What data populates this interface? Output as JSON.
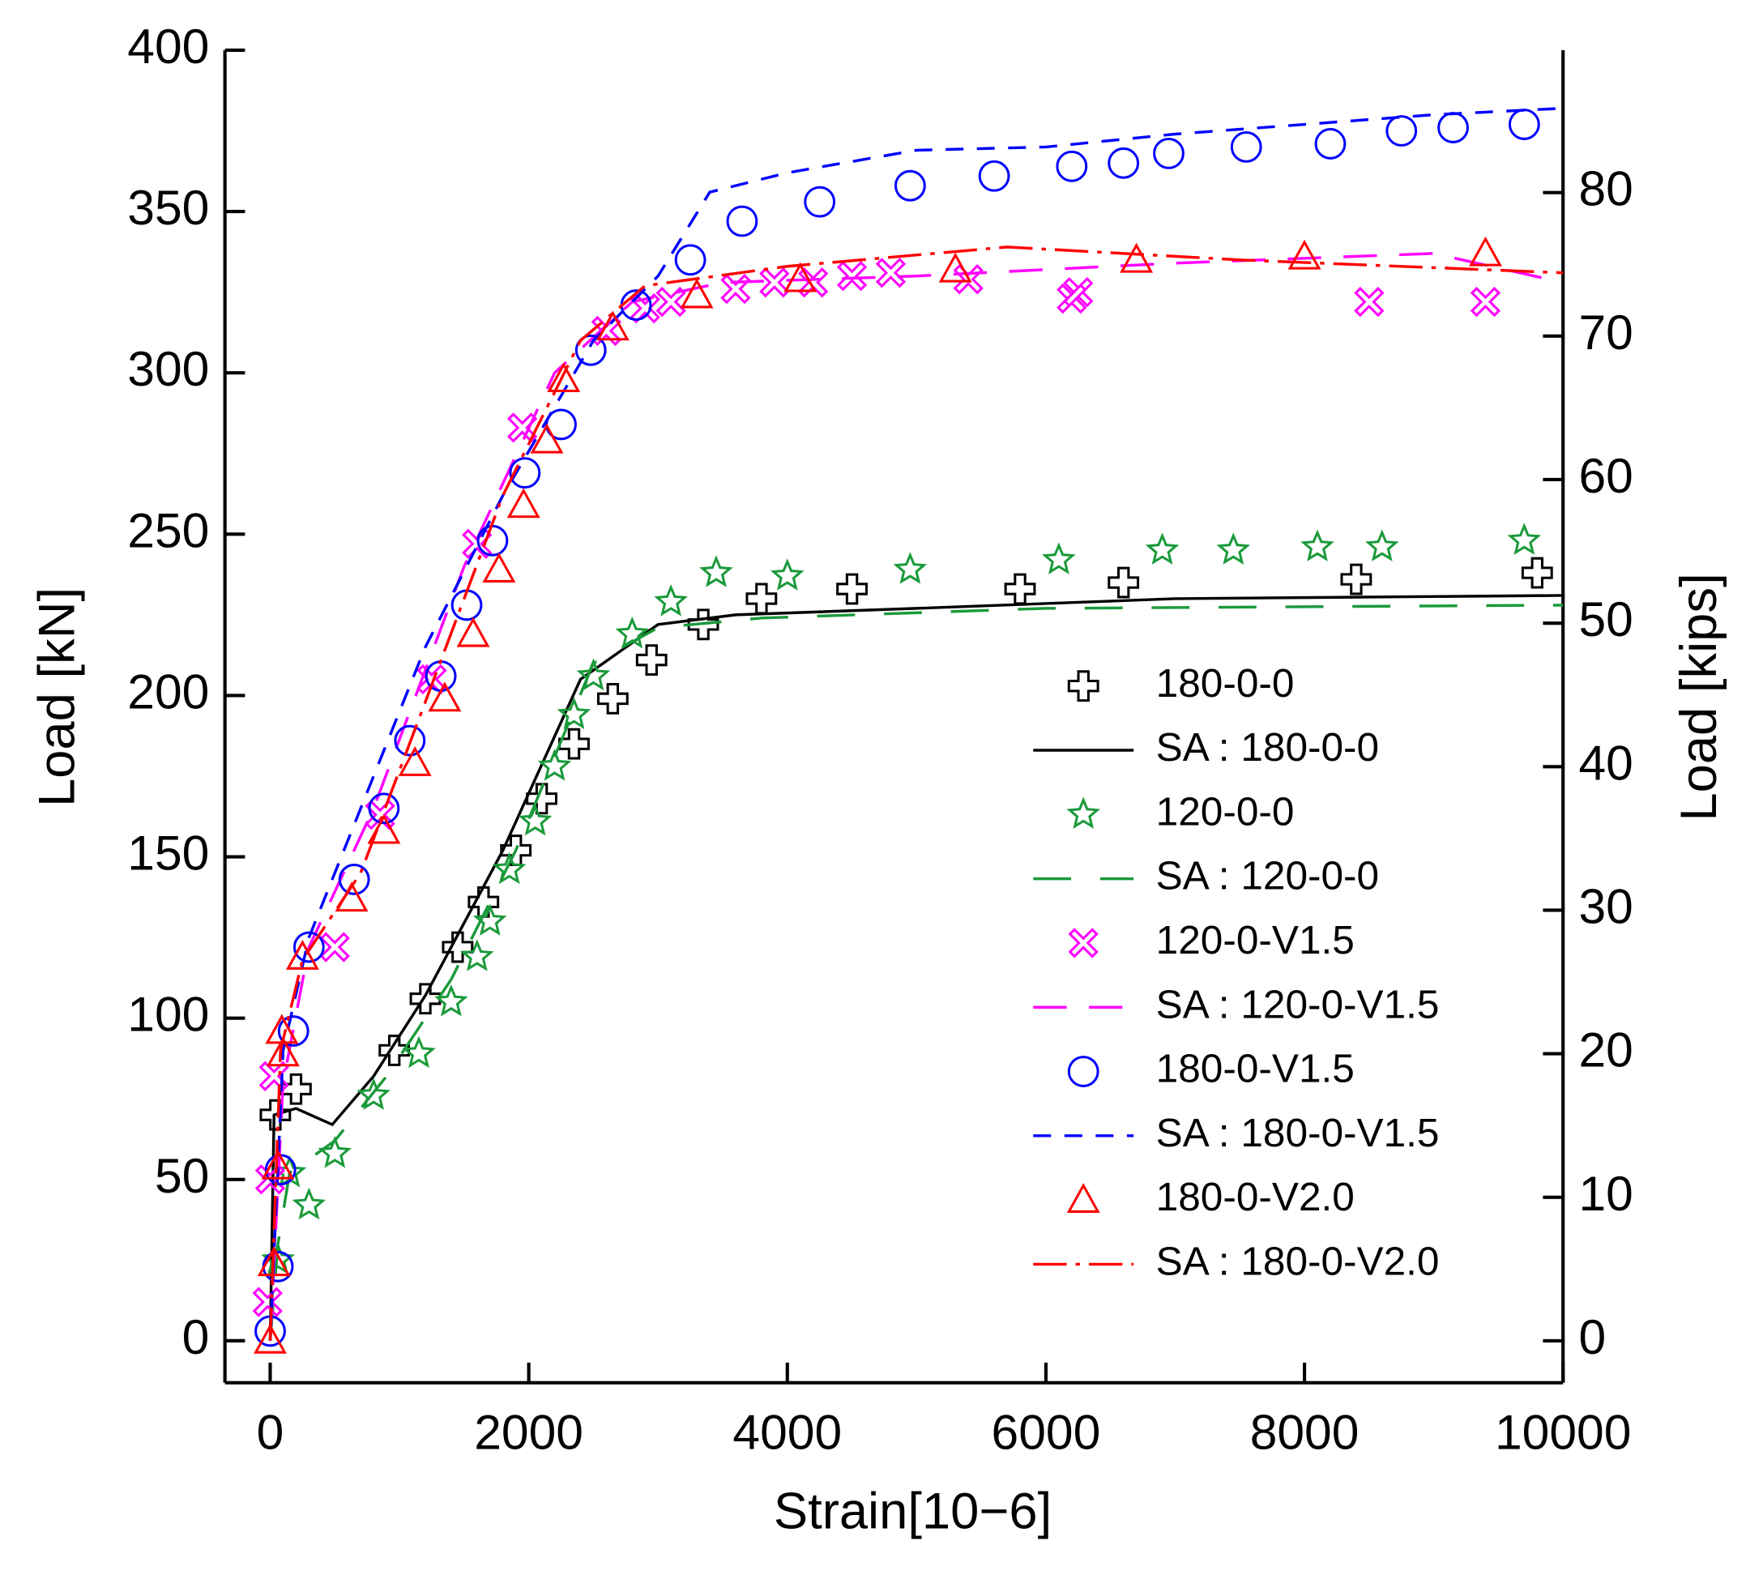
{
  "chart_data": {
    "type": "scatter",
    "x_label": "Strain[10−6]",
    "y_label": "Load [kN]",
    "y2_label": "Load [kips]",
    "xlim": [
      -350,
      10000
    ],
    "xticks": [
      0,
      2000,
      4000,
      6000,
      8000,
      10000
    ],
    "ylim": [
      -13,
      400
    ],
    "yticks": [
      0,
      50,
      100,
      150,
      200,
      250,
      300,
      350,
      400
    ],
    "y2lim": [
      -2.92,
      89.92
    ],
    "y2ticks": [
      0,
      10,
      20,
      30,
      40,
      50,
      60,
      70,
      80
    ],
    "legend": "lower right",
    "series": [
      {
        "name": "180-0-0",
        "color": "#000000",
        "marker": "plus",
        "x": [
          40,
          200,
          960,
          1200,
          1450,
          1650,
          1900,
          2100,
          2350,
          2650,
          2950,
          3350,
          3800,
          4500,
          5800,
          6600,
          8400,
          9800
        ],
        "values": [
          70,
          78,
          90,
          106,
          122,
          136,
          152,
          168,
          185,
          199,
          211,
          222,
          230,
          233,
          233,
          235,
          236,
          238
        ]
      },
      {
        "name": "SA : 180-0-0",
        "color": "#000000",
        "dash": "none",
        "x": [
          0,
          30,
          200,
          480,
          800,
          1200,
          1800,
          2400,
          3000,
          3600,
          5000,
          7000,
          10000
        ],
        "values": [
          0,
          70,
          72,
          67,
          82,
          107,
          152,
          205,
          222,
          225,
          227,
          230,
          231
        ]
      },
      {
        "name": "120-0-0",
        "color": "#1a9a3a",
        "marker": "star",
        "x": [
          60,
          150,
          300,
          500,
          800,
          1150,
          1400,
          1600,
          1700,
          1850,
          2050,
          2200,
          2350,
          2500,
          2800,
          3100,
          3450,
          4000,
          4950,
          6100,
          6900,
          7450,
          8100,
          8600,
          9700
        ],
        "values": [
          25,
          52,
          42,
          58,
          76,
          89,
          105,
          119,
          130,
          146,
          161,
          178,
          194,
          206,
          219,
          229,
          238,
          237,
          239,
          242,
          245,
          245,
          246,
          246,
          248
        ]
      },
      {
        "name": "SA : 120-0-0",
        "color": "#1a9a3a",
        "dash": "34 26",
        "x": [
          0,
          60,
          150,
          500,
          900,
          1400,
          1900,
          2500,
          3000,
          3800,
          6000,
          10000
        ],
        "values": [
          0,
          30,
          52,
          62,
          82,
          112,
          152,
          210,
          221,
          224,
          227,
          228
        ]
      },
      {
        "name": "120-0-V1.5",
        "color": "#ff00ff",
        "marker": "x",
        "x": [
          -20,
          0,
          30,
          500,
          850,
          1250,
          1600,
          1950,
          2600,
          2900,
          3100,
          3600,
          3900,
          4200,
          4500,
          4800,
          5400,
          6200,
          6250,
          8500,
          9400
        ],
        "values": [
          12,
          50,
          82,
          122,
          163,
          205,
          247,
          283,
          313,
          320,
          322,
          326,
          328,
          328,
          330,
          331,
          329,
          323,
          325,
          322,
          322
        ]
      },
      {
        "name": "SA : 120-0-V1.5",
        "color": "#ff00ff",
        "dash": "30 20",
        "x": [
          0,
          100,
          300,
          800,
          1500,
          2200,
          2800,
          3500,
          5000,
          7000,
          9000,
          10000
        ],
        "values": [
          0,
          80,
          122,
          165,
          240,
          300,
          322,
          328,
          330,
          334,
          337,
          328
        ]
      },
      {
        "name": "180-0-V1.5",
        "color": "#0000ff",
        "marker": "circle",
        "x": [
          0,
          60,
          80,
          180,
          300,
          650,
          880,
          1080,
          1320,
          1520,
          1720,
          1970,
          2250,
          2480,
          2830,
          3250,
          3650,
          4250,
          4950,
          5600,
          6200,
          6600,
          6950,
          7550,
          8200,
          8750,
          9150,
          9700
        ],
        "values": [
          3,
          23,
          53,
          96,
          122,
          143,
          165,
          186,
          206,
          228,
          248,
          269,
          284,
          307,
          321,
          335,
          347,
          353,
          358,
          361,
          364,
          365,
          368,
          370,
          371,
          375,
          376,
          377
        ]
      },
      {
        "name": "SA : 180-0-V1.5",
        "color": "#0000ff",
        "dash": "16 12",
        "x": [
          0,
          100,
          300,
          700,
          1200,
          1800,
          2500,
          3000,
          3400,
          4000,
          5000,
          6000,
          7000,
          9000,
          10000
        ],
        "values": [
          0,
          90,
          125,
          165,
          215,
          262,
          310,
          330,
          356,
          362,
          369,
          370,
          374,
          380,
          382
        ]
      },
      {
        "name": "180-0-V2.0",
        "color": "#ff0000",
        "marker": "triangle",
        "x": [
          0,
          30,
          60,
          100,
          90,
          250,
          630,
          880,
          1120,
          1350,
          1570,
          1770,
          1960,
          2140,
          2270,
          2650,
          3300,
          4100,
          5300,
          6700,
          8000,
          9400
        ],
        "values": [
          0,
          24,
          54,
          89,
          96,
          119,
          137,
          158,
          179,
          199,
          219,
          239,
          259,
          279,
          298,
          314,
          324,
          329,
          332,
          335,
          336,
          337
        ]
      },
      {
        "name": "SA : 180-0-V2.0",
        "color": "#ff0000",
        "dash": "30 8 4 8",
        "x": [
          0,
          80,
          250,
          700,
          1200,
          1800,
          2400,
          2900,
          4000,
          5700,
          7500,
          10000
        ],
        "values": [
          0,
          90,
          118,
          145,
          198,
          262,
          310,
          327,
          333,
          339,
          335,
          331
        ]
      }
    ]
  }
}
